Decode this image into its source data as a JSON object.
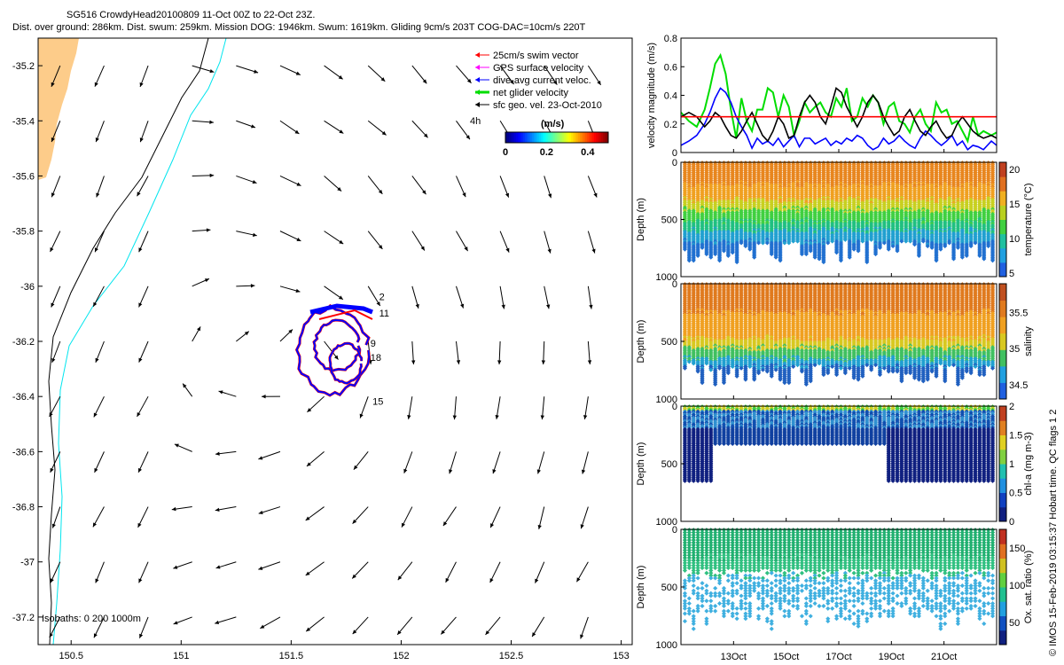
{
  "titles": {
    "line1": "SG516 CrowdyHead20100809 11-Oct 00Z to 22-Oct 23Z.",
    "line2": "Dist. over ground: 286km. Dist. swum: 259km. Mission DOG: 1946km. Swum: 1619km. Gliding 9cm/s 203T COG-DAC=10cm/s 220T"
  },
  "credit": "© IMOS 15-Feb-2019 03:15:37 Hobart time. QC flags 1  2",
  "colors": {
    "land": "#FDCC8A",
    "isobath200": "#000000",
    "isobath1000": "#00E5EE",
    "swim": "#FF0000",
    "gps": "#FF00FF",
    "dac": "#0000FF",
    "net": "#00DD00",
    "sfc": "#000000"
  },
  "chart_data": [
    {
      "type": "map",
      "xticks": [
        "150.5",
        "151",
        "151.5",
        "152",
        "152.5",
        "153"
      ],
      "xtick_values": [
        150.5,
        151,
        151.5,
        152,
        152.5,
        153
      ],
      "yticks": [
        "-35.2",
        "-35.4",
        "-35.6",
        "-35.8",
        "-36",
        "-36.2",
        "-36.4",
        "-36.6",
        "-36.8",
        "-37",
        "-37.2"
      ],
      "ytick_values": [
        -35.2,
        -35.4,
        -35.6,
        -35.8,
        -36,
        -36.2,
        -36.4,
        -36.6,
        -36.8,
        -37,
        -37.2
      ],
      "xlim": [
        150.35,
        153.05
      ],
      "ylim": [
        -37.3,
        -35.1
      ],
      "isobaths_label": "Isobaths: 0   200  1000m",
      "legend": [
        {
          "label": "25cm/s swim vector",
          "color": "#FF0000"
        },
        {
          "label": "GPS surface velocity",
          "color": "#FF00FF"
        },
        {
          "label": "dive-avg current veloc.",
          "color": "#0000FF"
        },
        {
          "label": "net glider velocity",
          "color": "#00DD00"
        },
        {
          "label": "sfc geo. vel. 23-Oct-2010",
          "color": "#000000"
        }
      ],
      "colorbar": {
        "label": "(m/s)",
        "ticks": [
          "0",
          "0.2",
          "0.4"
        ],
        "tick_values": [
          0,
          0.2,
          0.4
        ],
        "range": [
          0,
          0.5
        ]
      },
      "side_label": "4h",
      "track_labels": [
        {
          "text": "2",
          "lon": 151.9,
          "lat": -36.05
        },
        {
          "text": "11",
          "lon": 151.9,
          "lat": -36.11
        },
        {
          "text": "9",
          "lon": 151.86,
          "lat": -36.22
        },
        {
          "text": "18",
          "lon": 151.86,
          "lat": -36.27
        },
        {
          "text": "15",
          "lon": 151.87,
          "lat": -36.43
        }
      ]
    },
    {
      "type": "line",
      "ylabel": "velocity magnitude (m/s)",
      "yticks": [
        "0",
        "0.2",
        "0.4",
        "0.6",
        "0.8"
      ],
      "ylim": [
        0,
        0.8
      ],
      "xlim": [
        11,
        23
      ],
      "reference_line": 0.25,
      "series": [
        {
          "color": "#00DD00",
          "x": [
            11.0,
            11.3,
            11.6,
            11.9,
            12.1,
            12.3,
            12.5,
            12.7,
            12.9,
            13.1,
            13.3,
            13.5,
            13.7,
            13.9,
            14.1,
            14.3,
            14.5,
            14.7,
            14.9,
            15.1,
            15.3,
            15.5,
            15.7,
            15.9,
            16.1,
            16.3,
            16.5,
            16.7,
            16.9,
            17.1,
            17.3,
            17.5,
            17.7,
            17.9,
            18.1,
            18.3,
            18.5,
            18.7,
            18.9,
            19.1,
            19.3,
            19.5,
            19.7,
            19.9,
            20.1,
            20.3,
            20.5,
            20.7,
            20.9,
            21.1,
            21.3,
            21.5,
            21.7,
            21.9,
            22.1,
            22.3,
            22.5,
            22.8,
            23.0
          ],
          "y": [
            0.28,
            0.22,
            0.18,
            0.3,
            0.45,
            0.62,
            0.68,
            0.55,
            0.3,
            0.1,
            0.38,
            0.22,
            0.15,
            0.3,
            0.3,
            0.45,
            0.42,
            0.25,
            0.4,
            0.32,
            0.12,
            0.22,
            0.35,
            0.28,
            0.32,
            0.35,
            0.28,
            0.25,
            0.38,
            0.32,
            0.45,
            0.22,
            0.25,
            0.38,
            0.32,
            0.4,
            0.35,
            0.2,
            0.32,
            0.35,
            0.22,
            0.2,
            0.14,
            0.25,
            0.3,
            0.2,
            0.15,
            0.35,
            0.28,
            0.3,
            0.2,
            0.22,
            0.15,
            0.08,
            0.25,
            0.12,
            0.15,
            0.12,
            0.14
          ]
        },
        {
          "color": "#0000FF",
          "x": [
            11.0,
            11.3,
            11.6,
            11.9,
            12.1,
            12.3,
            12.5,
            12.7,
            12.9,
            13.1,
            13.3,
            13.5,
            13.7,
            13.9,
            14.1,
            14.3,
            14.5,
            14.7,
            14.9,
            15.1,
            15.3,
            15.5,
            15.7,
            15.9,
            16.1,
            16.3,
            16.5,
            16.7,
            16.9,
            17.1,
            17.3,
            17.5,
            17.7,
            17.9,
            18.1,
            18.3,
            18.5,
            18.7,
            18.9,
            19.1,
            19.3,
            19.5,
            19.7,
            19.9,
            20.1,
            20.3,
            20.5,
            20.7,
            20.9,
            21.1,
            21.3,
            21.5,
            21.7,
            21.9,
            22.1,
            22.3,
            22.5,
            22.8,
            23.0
          ],
          "y": [
            0.05,
            0.08,
            0.12,
            0.2,
            0.28,
            0.38,
            0.45,
            0.42,
            0.35,
            0.25,
            0.18,
            0.12,
            0.03,
            0.1,
            0.06,
            0.08,
            0.05,
            0.1,
            0.04,
            0.08,
            0.12,
            0.04,
            0.1,
            0.1,
            0.06,
            0.08,
            0.1,
            0.05,
            0.08,
            0.06,
            0.1,
            0.08,
            0.12,
            0.1,
            0.05,
            0.02,
            0.04,
            0.1,
            0.06,
            0.08,
            0.12,
            0.08,
            0.05,
            0.03,
            0.1,
            0.15,
            0.12,
            0.08,
            0.05,
            0.08,
            0.12,
            0.05,
            0.08,
            0.02,
            0.05,
            0.04,
            0.02,
            0.08,
            0.05
          ]
        },
        {
          "color": "#000000",
          "x": [
            11.0,
            11.3,
            11.6,
            11.9,
            12.1,
            12.3,
            12.5,
            12.7,
            12.9,
            13.1,
            13.3,
            13.5,
            13.7,
            13.9,
            14.1,
            14.3,
            14.5,
            14.7,
            14.9,
            15.1,
            15.3,
            15.5,
            15.7,
            15.9,
            16.1,
            16.3,
            16.5,
            16.7,
            16.9,
            17.1,
            17.3,
            17.5,
            17.7,
            17.9,
            18.1,
            18.3,
            18.5,
            18.7,
            18.9,
            19.1,
            19.3,
            19.5,
            19.7,
            19.9,
            20.1,
            20.3,
            20.5,
            20.7,
            20.9,
            21.1,
            21.3,
            21.5,
            21.7,
            21.9,
            22.1,
            22.3,
            22.5,
            22.8,
            23.0
          ],
          "y": [
            0.25,
            0.28,
            0.25,
            0.18,
            0.22,
            0.28,
            0.25,
            0.18,
            0.12,
            0.1,
            0.15,
            0.22,
            0.28,
            0.2,
            0.12,
            0.08,
            0.15,
            0.25,
            0.2,
            0.1,
            0.12,
            0.25,
            0.35,
            0.4,
            0.35,
            0.25,
            0.2,
            0.32,
            0.45,
            0.42,
            0.32,
            0.25,
            0.18,
            0.25,
            0.35,
            0.4,
            0.35,
            0.25,
            0.18,
            0.12,
            0.15,
            0.25,
            0.3,
            0.22,
            0.15,
            0.12,
            0.18,
            0.22,
            0.15,
            0.1,
            0.12,
            0.2,
            0.25,
            0.2,
            0.15,
            0.12,
            0.1,
            0.12,
            0.1
          ]
        },
        {
          "color": "#FF0000",
          "x": [
            11,
            23
          ],
          "y": [
            0.25,
            0.25
          ]
        }
      ]
    },
    {
      "type": "scatter",
      "ylabel": "Depth (m)",
      "yticks": [
        "0",
        "500",
        "1000"
      ],
      "ylim": [
        1000,
        0
      ],
      "colorbar_label": "temperature (°C)",
      "colorbar_ticks": [
        "5",
        "10",
        "15",
        "20"
      ],
      "colorbar_range": [
        4.5,
        21
      ]
    },
    {
      "type": "scatter",
      "ylabel": "Depth (m)",
      "yticks": [
        "0",
        "500",
        "1000"
      ],
      "ylim": [
        1000,
        0
      ],
      "colorbar_label": "salinity",
      "colorbar_ticks": [
        "34.5",
        "35",
        "35.5"
      ],
      "colorbar_range": [
        34.3,
        35.9
      ]
    },
    {
      "type": "scatter",
      "ylabel": "Depth (m)",
      "yticks": [
        "0",
        "500",
        "1000"
      ],
      "ylim": [
        1000,
        0
      ],
      "colorbar_label": "chl-a (mg m-3)",
      "colorbar_ticks": [
        "0",
        "0.5",
        "1",
        "1.5",
        "2"
      ],
      "colorbar_range": [
        0,
        2
      ]
    },
    {
      "type": "scatter",
      "ylabel": "Depth (m)",
      "yticks": [
        "0",
        "500",
        "1000"
      ],
      "ylim": [
        1000,
        0
      ],
      "colorbar_label": "Ox. sat. ratio (%)",
      "colorbar_ticks": [
        "50",
        "100",
        "150"
      ],
      "colorbar_range": [
        20,
        175
      ],
      "xticks": [
        "13Oct",
        "15Oct",
        "17Oct",
        "19Oct",
        "21Oct"
      ],
      "xtick_values": [
        13,
        15,
        17,
        19,
        21
      ],
      "xlim": [
        11,
        23
      ]
    }
  ]
}
